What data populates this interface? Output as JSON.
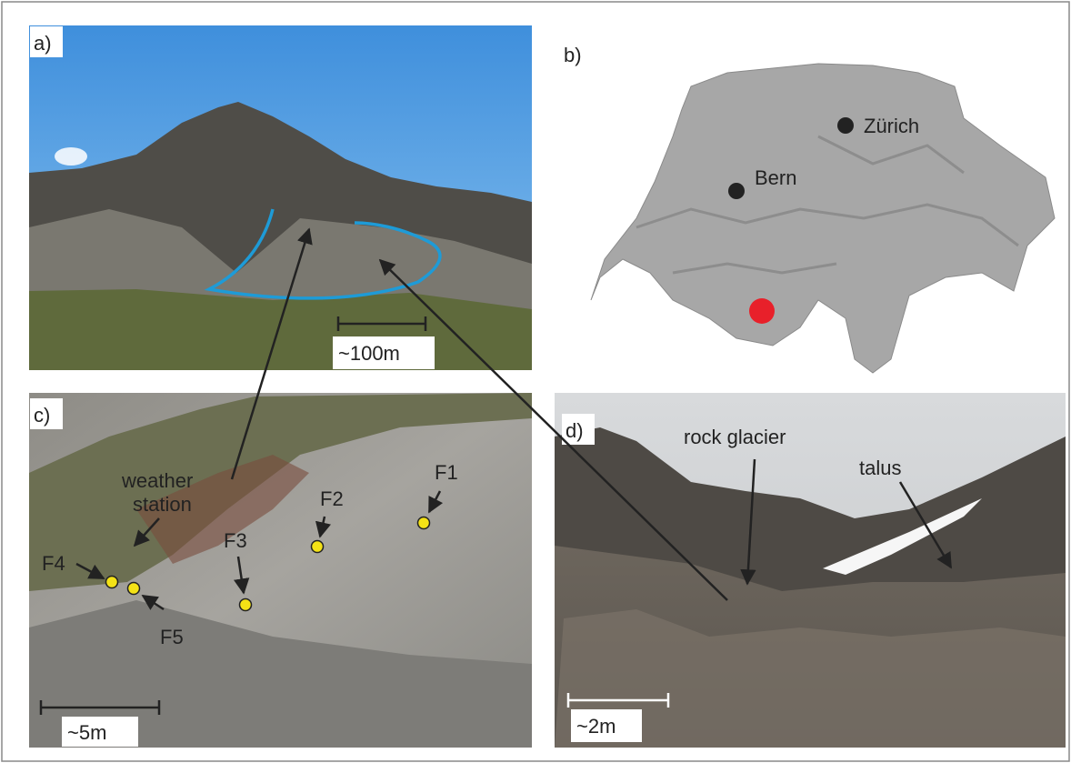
{
  "panels": [
    {
      "label": "a)",
      "scale_bar": "~100m"
    },
    {
      "label": "b)",
      "cities": [
        "Zürich",
        "Bern"
      ]
    },
    {
      "label": "c)",
      "station_label": [
        "weather",
        "station"
      ],
      "sensors": [
        "F1",
        "F2",
        "F3",
        "F4",
        "F5"
      ],
      "scale_bar": "~5m"
    },
    {
      "label": "d)",
      "annotations": [
        "rock glacier",
        "talus"
      ],
      "scale_bar": "~2m"
    }
  ]
}
